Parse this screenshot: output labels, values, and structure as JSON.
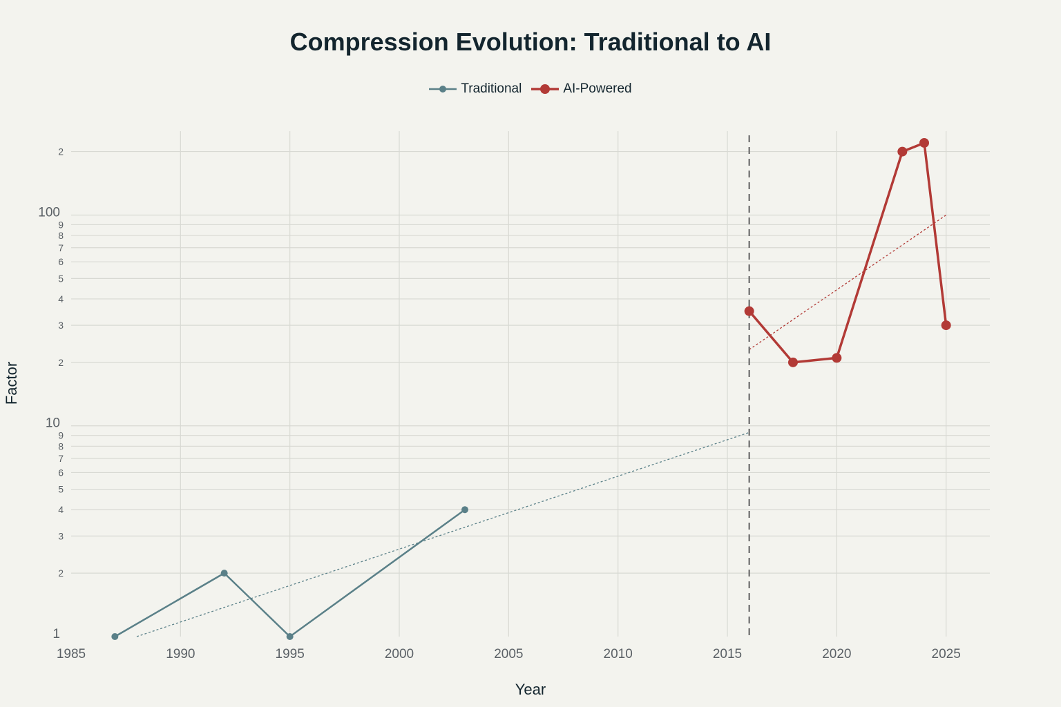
{
  "chart_data": {
    "type": "line",
    "title": "Compression Evolution: Traditional to AI",
    "xlabel": "Year",
    "ylabel": "Factor",
    "x_scale": "linear",
    "y_scale": "log",
    "xlim": [
      1985,
      2027
    ],
    "ylim": [
      1,
      250
    ],
    "x_ticks": [
      "1985",
      "1990",
      "1995",
      "2000",
      "2005",
      "2010",
      "2015",
      "2020",
      "2025"
    ],
    "y_major_ticks": [
      {
        "value": 1,
        "label": "1"
      },
      {
        "value": 10,
        "label": "10"
      },
      {
        "value": 100,
        "label": "100"
      }
    ],
    "y_minor_ticks": [
      {
        "value": 2,
        "label": "2"
      },
      {
        "value": 3,
        "label": "3"
      },
      {
        "value": 4,
        "label": "4"
      },
      {
        "value": 5,
        "label": "5"
      },
      {
        "value": 6,
        "label": "6"
      },
      {
        "value": 7,
        "label": "7"
      },
      {
        "value": 8,
        "label": "8"
      },
      {
        "value": 9,
        "label": "9"
      },
      {
        "value": 20,
        "label": "2"
      },
      {
        "value": 30,
        "label": "3"
      },
      {
        "value": 40,
        "label": "4"
      },
      {
        "value": 50,
        "label": "5"
      },
      {
        "value": 60,
        "label": "6"
      },
      {
        "value": 70,
        "label": "7"
      },
      {
        "value": 80,
        "label": "8"
      },
      {
        "value": 90,
        "label": "9"
      },
      {
        "value": 200,
        "label": "2"
      }
    ],
    "grid": true,
    "legend_position": "top-center",
    "series": [
      {
        "name": "Traditional",
        "color": "#5a8088",
        "marker_size": "small",
        "x": [
          1987,
          1992,
          1995,
          2003
        ],
        "y": [
          1,
          2,
          1,
          4
        ]
      },
      {
        "name": "AI-Powered",
        "color": "#b23a36",
        "marker_size": "large",
        "x": [
          2016,
          2018,
          2020,
          2023,
          2024,
          2025
        ],
        "y": [
          35,
          20,
          21,
          200,
          220,
          30
        ]
      }
    ],
    "trendlines": [
      {
        "series": "Traditional",
        "color": "#5a8088",
        "style": "dotted",
        "x": [
          1988,
          2016
        ],
        "y": [
          1,
          9.3
        ]
      },
      {
        "series": "AI-Powered",
        "color": "#b23a36",
        "style": "dotted",
        "x": [
          2016,
          2025
        ],
        "y": [
          23,
          100
        ]
      }
    ],
    "reference_lines": [
      {
        "orientation": "vertical",
        "x": 2016,
        "style": "dashed",
        "color": "#6d6d6d"
      }
    ]
  }
}
